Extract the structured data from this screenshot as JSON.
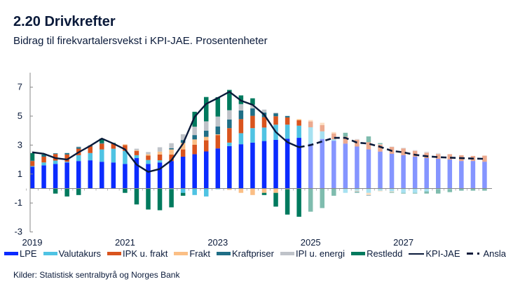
{
  "header": {
    "title": "2.20 Drivkrefter",
    "subtitle": "Bidrag til firekvartalersvekst i KPI-JAE. Prosentenheter"
  },
  "source": "Kilder: Statistisk sentralbyrå og Norges Bank",
  "chart_data": {
    "type": "bar",
    "stacked": true,
    "title": "",
    "xlabel": "",
    "ylabel": "",
    "ylim": [
      -3,
      8
    ],
    "yticks": [
      -3,
      -1,
      1,
      3,
      5,
      7
    ],
    "xtick_labels": [
      "2019",
      "2021",
      "2023",
      "2025",
      "2027"
    ],
    "grid": false,
    "legend_position": "bottom",
    "forecast_start": "2025 K1",
    "categories": [
      "2019 K1",
      "2019 K2",
      "2019 K3",
      "2019 K4",
      "2020 K1",
      "2020 K2",
      "2020 K3",
      "2020 K4",
      "2021 K1",
      "2021 K2",
      "2021 K3",
      "2021 K4",
      "2022 K1",
      "2022 K2",
      "2022 K3",
      "2022 K4",
      "2023 K1",
      "2023 K2",
      "2023 K3",
      "2023 K4",
      "2024 K1",
      "2024 K2",
      "2024 K3",
      "2024 K4",
      "2025 K1",
      "2025 K2",
      "2025 K3",
      "2025 K4",
      "2026 K1",
      "2026 K2",
      "2026 K3",
      "2026 K4",
      "2027 K1",
      "2027 K2",
      "2027 K3",
      "2027 K4",
      "2028 K1",
      "2028 K2",
      "2028 K3",
      "2028 K4"
    ],
    "series": [
      {
        "name": "LPE",
        "color": "#0b2bff",
        "values": [
          1.5,
          1.6,
          1.7,
          1.8,
          1.9,
          1.95,
          1.85,
          1.8,
          1.7,
          2.1,
          1.7,
          1.8,
          1.9,
          2.2,
          2.37,
          2.56,
          2.77,
          2.93,
          3.06,
          3.17,
          3.28,
          3.36,
          3.44,
          3.5,
          3.1,
          3.42,
          3.3,
          3.1,
          2.9,
          2.7,
          2.55,
          2.4,
          2.3,
          2.2,
          2.1,
          2.05,
          2.0,
          1.9,
          1.9,
          1.85
        ]
      },
      {
        "name": "Valutakurs",
        "color": "#4fc3e3",
        "values": [
          0.05,
          0.2,
          0.23,
          0.05,
          0.4,
          0.5,
          0.85,
          0.95,
          0.9,
          0.2,
          0.27,
          0.15,
          -0.05,
          -0.3,
          -0.45,
          -0.55,
          -0.05,
          0.24,
          0.76,
          1.0,
          0.93,
          1.05,
          0.97,
          0.84,
          1.13,
          0.53,
          0.1,
          -0.3,
          -0.15,
          -0.3,
          -0.15,
          -0.2,
          -0.3,
          -0.3,
          -0.2,
          -0.05,
          -0.05,
          0,
          0,
          0
        ]
      },
      {
        "name": "IPK u. frakt",
        "color": "#d9541e",
        "values": [
          0.35,
          0.4,
          0.45,
          0.5,
          0.45,
          0.45,
          0.4,
          0.35,
          0.4,
          0.3,
          0.3,
          0.4,
          0.45,
          0.5,
          0.65,
          0.77,
          0.92,
          1.0,
          0.97,
          0.85,
          0.72,
          0.58,
          0.5,
          0.37,
          0.4,
          0.43,
          0.4,
          0.48,
          0.47,
          0.5,
          0.48,
          0.47,
          0.47,
          0.4,
          0.37,
          0.32,
          0.37,
          0.4,
          0.35,
          0.42
        ]
      },
      {
        "name": "Frakt",
        "color": "#fbbf85",
        "values": [
          0,
          0,
          0,
          0,
          0,
          0,
          0,
          0,
          0.05,
          0.05,
          0.1,
          0.2,
          0.35,
          0.45,
          0.37,
          0.24,
          0.05,
          -0.1,
          -0.3,
          -0.45,
          -0.3,
          -0.3,
          -0.05,
          0.08,
          0.1,
          0.16,
          0.1,
          0,
          -0.05,
          -0.15,
          -0.05,
          -0.05,
          0,
          0,
          0,
          0,
          0,
          0,
          0,
          0
        ]
      },
      {
        "name": "Kraftpriser",
        "color": "#1f6e86",
        "values": [
          0.05,
          0.1,
          0.05,
          0.1,
          0.1,
          0.05,
          0.05,
          0,
          0,
          0,
          0,
          0,
          0.08,
          0.2,
          0.3,
          0.43,
          0.55,
          0.6,
          0.6,
          0.52,
          0.32,
          0.2,
          0.1,
          0,
          0,
          0,
          0,
          0,
          -0.05,
          -0.05,
          0,
          0,
          0,
          0,
          0,
          0,
          0,
          0,
          0,
          0
        ]
      },
      {
        "name": "IPI u. energi",
        "color": "#bfc3c9",
        "values": [
          0,
          0,
          0,
          0,
          0.05,
          0.05,
          0,
          0,
          0,
          0.1,
          0.15,
          0.3,
          0.35,
          0.4,
          0.58,
          0.64,
          0.68,
          0.64,
          0.44,
          0.24,
          0.2,
          0.05,
          0,
          0,
          0,
          0,
          0,
          0,
          0.05,
          0,
          0.03,
          0.03,
          0.05,
          0.05,
          0.08,
          0.08,
          0,
          0,
          0,
          0
        ]
      },
      {
        "name": "Restledd",
        "color": "#007a5e",
        "values": [
          0.5,
          0.05,
          -0.35,
          -0.55,
          -0.45,
          0,
          0.3,
          0.05,
          -0.3,
          -1.1,
          -1.45,
          -1.5,
          -1.25,
          -0.2,
          1.03,
          1.68,
          1.34,
          1.4,
          0.6,
          0.45,
          -0.15,
          -0.95,
          -1.75,
          -1.95,
          -1.6,
          -1.35,
          -0.5,
          0.27,
          -0.05,
          0.4,
          0.08,
          -0.05,
          -0.05,
          -0.05,
          -0.15,
          -0.3,
          -0.2,
          -0.15,
          -0.15,
          -0.15
        ]
      }
    ],
    "lines": [
      {
        "name": "KPI-JAE",
        "color": "#0a1a3a",
        "style": "solid",
        "values": [
          2.5,
          2.4,
          2.1,
          2.0,
          2.5,
          2.95,
          3.45,
          3.1,
          2.7,
          1.65,
          1.15,
          1.35,
          1.95,
          3.1,
          4.95,
          5.85,
          6.25,
          6.68,
          6.07,
          5.78,
          5.1,
          3.9,
          3.2,
          2.85,
          null,
          null,
          null,
          null,
          null,
          null,
          null,
          null,
          null,
          null,
          null,
          null,
          null,
          null,
          null,
          null
        ]
      },
      {
        "name": "Anslag",
        "color": "#0a1a3a",
        "style": "dashed",
        "values": [
          null,
          null,
          null,
          null,
          null,
          null,
          null,
          null,
          null,
          null,
          null,
          null,
          null,
          null,
          null,
          null,
          null,
          null,
          null,
          null,
          null,
          null,
          null,
          2.85,
          3.0,
          3.25,
          3.5,
          3.5,
          3.17,
          3.1,
          2.88,
          2.6,
          2.5,
          2.33,
          2.23,
          2.17,
          2.13,
          2.1,
          2.07,
          2.05
        ]
      }
    ]
  }
}
